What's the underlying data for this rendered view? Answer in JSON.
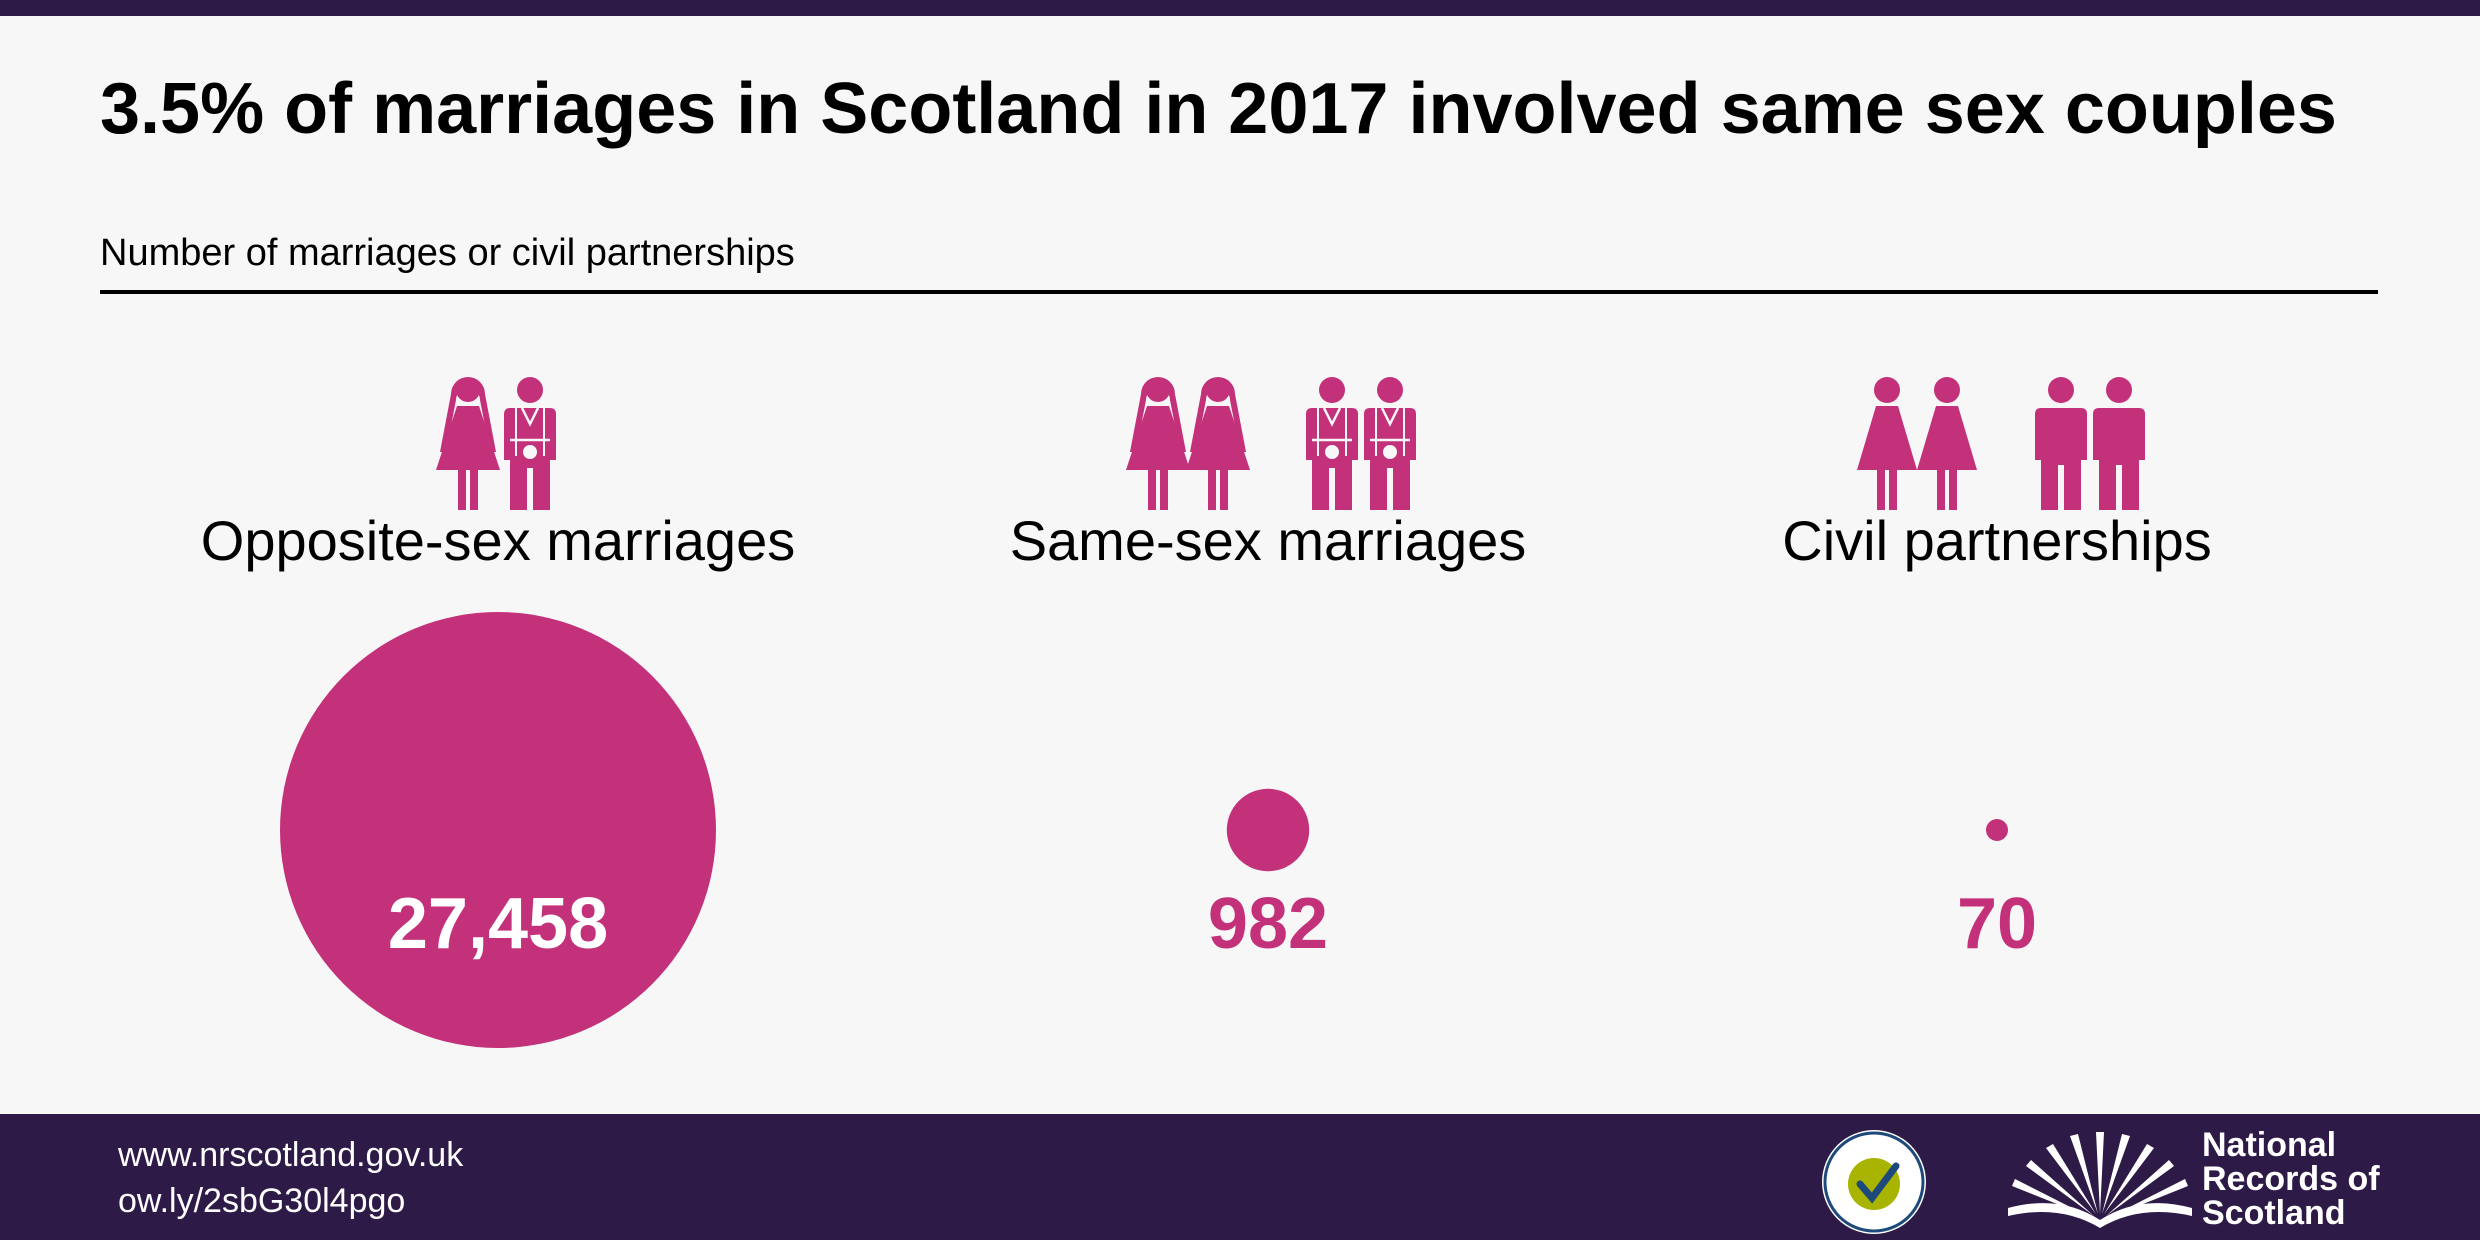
{
  "header": {
    "title": "3.5% of marriages in Scotland in 2017 involved same sex couples",
    "subtitle": "Number of marriages or civil partnerships"
  },
  "colors": {
    "accent": "#c3317a",
    "brand_dark": "#2e1a47",
    "background": "#f7f7f7"
  },
  "chart_data": {
    "type": "bubble",
    "title": "3.5% of marriages in Scotland in 2017 involved same sex couples",
    "subtitle": "Number of marriages or civil partnerships",
    "categories": [
      "Opposite-sex marriages",
      "Same-sex marriages",
      "Civil partnerships"
    ],
    "values": [
      27458,
      982,
      70
    ],
    "value_labels": [
      "27,458",
      "982",
      "70"
    ],
    "icons": [
      "bride-and-groom-icon",
      "two-brides-and-two-grooms-icon",
      "two-women-and-two-men-icon"
    ]
  },
  "footer": {
    "links": [
      "www.nrscotland.gov.uk",
      "ow.ly/2sbG30l4pgo"
    ],
    "org_name": [
      "National",
      "Records of",
      "Scotland"
    ],
    "badge_icon": "national-statistics-badge",
    "logo_icon": "open-book-logo"
  }
}
